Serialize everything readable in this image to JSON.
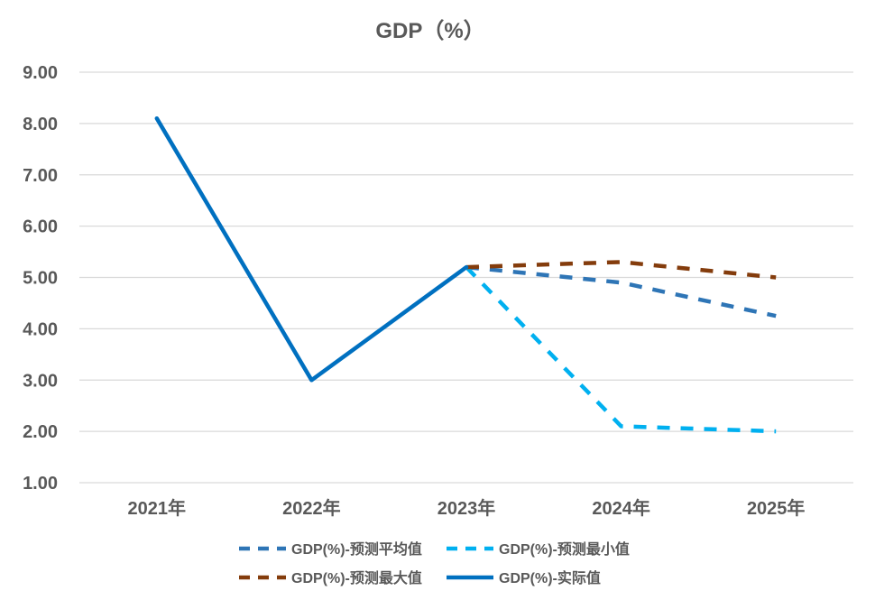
{
  "chart_data": {
    "type": "line",
    "title": "GDP（%）",
    "categories": [
      "2021年",
      "2022年",
      "2023年",
      "2024年",
      "2025年"
    ],
    "ylim": [
      1.0,
      9.0
    ],
    "yticks": [
      "9.00",
      "8.00",
      "7.00",
      "6.00",
      "5.00",
      "4.00",
      "3.00",
      "2.00",
      "1.00"
    ],
    "grid": true,
    "legend_position": "bottom",
    "series": [
      {
        "name": "GDP(%)-预测平均值",
        "values": [
          null,
          null,
          5.2,
          4.9,
          4.25
        ],
        "color": "#2E75B6",
        "style": "dashed"
      },
      {
        "name": "GDP(%)-预测最小值",
        "values": [
          null,
          null,
          5.2,
          2.1,
          2.0
        ],
        "color": "#00B0F0",
        "style": "dashed"
      },
      {
        "name": "GDP(%)-预测最大值",
        "values": [
          null,
          null,
          5.2,
          5.3,
          5.0
        ],
        "color": "#843C0C",
        "style": "dashed"
      },
      {
        "name": "GDP(%)-实际值",
        "values": [
          8.1,
          3.0,
          5.2,
          null,
          null
        ],
        "color": "#0070C0",
        "style": "solid"
      }
    ]
  }
}
